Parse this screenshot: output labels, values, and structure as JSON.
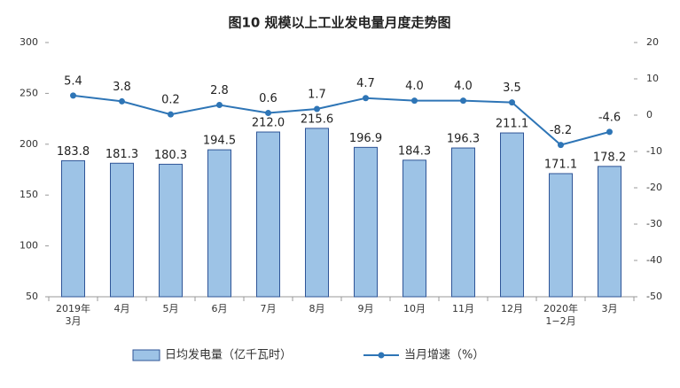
{
  "chart_data": {
    "type": "bar",
    "title": "图10  规模以上工业发电量月度走势图",
    "categories": [
      "2019年\n3月",
      "4月",
      "5月",
      "6月",
      "7月",
      "8月",
      "9月",
      "10月",
      "11月",
      "12月",
      "2020年\n1−2月",
      "3月"
    ],
    "series": [
      {
        "name": "日均发电量（亿千瓦时）",
        "type": "bar",
        "color": "#9dc3e6",
        "values": [
          183.8,
          181.3,
          180.3,
          194.5,
          212.0,
          215.6,
          196.9,
          184.3,
          196.3,
          211.1,
          171.1,
          178.2
        ],
        "value_labels": [
          "183.8",
          "181.3",
          "180.3",
          "194.5",
          "212.0",
          "215.6",
          "196.9",
          "184.3",
          "196.3",
          "211.1",
          "171.1",
          "178.2"
        ]
      },
      {
        "name": "当月增速（%）",
        "type": "line",
        "axis": "y2",
        "color": "#2e75b6",
        "values": [
          5.4,
          3.8,
          0.2,
          2.8,
          0.6,
          1.7,
          4.7,
          4.0,
          4.0,
          3.5,
          -8.2,
          -4.6
        ],
        "value_labels": [
          "5.4",
          "3.8",
          "0.2",
          "2.8",
          "0.6",
          "1.7",
          "4.7",
          "4.0",
          "4.0",
          "3.5",
          "-8.2",
          "-4.6"
        ]
      }
    ],
    "ylim": [
      50,
      300
    ],
    "yticks": [
      50,
      100,
      150,
      200,
      250,
      300
    ],
    "y2lim": [
      -50,
      20
    ],
    "y2ticks": [
      -50,
      -40,
      -30,
      -20,
      -10,
      0,
      10,
      20
    ]
  }
}
